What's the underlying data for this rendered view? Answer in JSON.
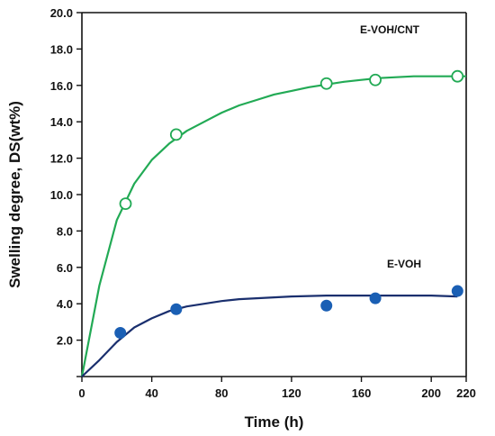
{
  "chart_data": {
    "type": "scatter",
    "title": "",
    "xlabel": "Time (h)",
    "ylabel": "Swelling degree, DS(wt%)",
    "xlim": [
      0,
      220
    ],
    "ylim": [
      0,
      20
    ],
    "x_ticks": [
      0,
      40,
      80,
      120,
      160,
      200,
      220
    ],
    "x_tick_labels": [
      "0",
      "40",
      "80",
      "120",
      "160",
      "200",
      "220"
    ],
    "y_ticks": [
      0,
      2,
      4,
      6,
      8,
      10,
      12,
      14,
      16,
      18,
      20
    ],
    "y_tick_labels": [
      "",
      "2.0",
      "4.0",
      "6.0",
      "8.0",
      "10.0",
      "12.0",
      "14.0",
      "16.0",
      "18.0",
      "20.0"
    ],
    "grid": false,
    "series": [
      {
        "name": "E-VOH/CNT",
        "marker": "open-circle",
        "color": "#22aa55",
        "points": [
          {
            "x": 25,
            "y": 9.5
          },
          {
            "x": 54,
            "y": 13.3
          },
          {
            "x": 140,
            "y": 16.1
          },
          {
            "x": 168,
            "y": 16.3
          },
          {
            "x": 215,
            "y": 16.5
          }
        ],
        "fit_curve": {
          "x": [
            0,
            10,
            20,
            30,
            40,
            50,
            60,
            70,
            80,
            90,
            100,
            110,
            120,
            130,
            140,
            150,
            160,
            170,
            180,
            190,
            200,
            210,
            220
          ],
          "y": [
            0,
            5.0,
            8.6,
            10.6,
            11.9,
            12.8,
            13.5,
            14.0,
            14.5,
            14.9,
            15.2,
            15.5,
            15.7,
            15.9,
            16.05,
            16.2,
            16.3,
            16.4,
            16.45,
            16.5,
            16.5,
            16.5,
            16.5
          ]
        }
      },
      {
        "name": "E-VOH",
        "marker": "filled-circle",
        "color": "#1a5fb4",
        "curve_color": "#1a2f6e",
        "points": [
          {
            "x": 22,
            "y": 2.4
          },
          {
            "x": 54,
            "y": 3.7
          },
          {
            "x": 140,
            "y": 3.9
          },
          {
            "x": 168,
            "y": 4.3
          },
          {
            "x": 215,
            "y": 4.7
          }
        ],
        "fit_curve": {
          "x": [
            0,
            10,
            20,
            30,
            40,
            50,
            60,
            70,
            80,
            90,
            100,
            110,
            120,
            140,
            160,
            180,
            200,
            215
          ],
          "y": [
            0,
            0.9,
            1.9,
            2.7,
            3.2,
            3.6,
            3.85,
            4.0,
            4.15,
            4.25,
            4.3,
            4.35,
            4.4,
            4.45,
            4.45,
            4.45,
            4.45,
            4.4
          ]
        }
      }
    ]
  }
}
